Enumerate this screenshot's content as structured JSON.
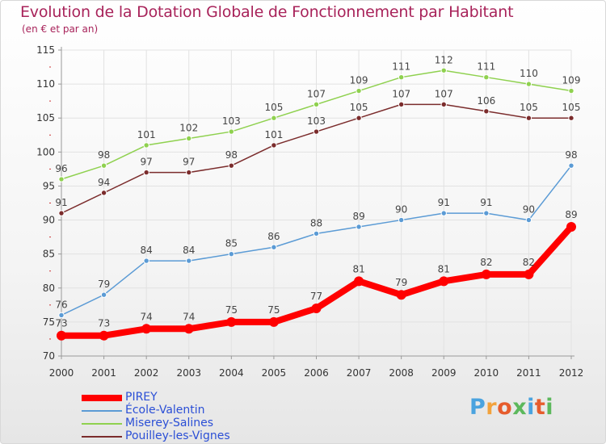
{
  "title": "Evolution de la Dotation Globale de Fonctionnement par Habitant",
  "subtitle": "(en € et par an)",
  "logo": {
    "letters": [
      "P",
      "r",
      "o",
      "x",
      "i",
      "t",
      "i"
    ],
    "colors": [
      "#4aa3df",
      "#f2a23c",
      "#e65c2d",
      "#5cb85c",
      "#4aa3df",
      "#e65c2d",
      "#5cb85c"
    ]
  },
  "chart_data": {
    "type": "line",
    "title": "Evolution de la Dotation Globale de Fonctionnement par Habitant",
    "subtitle": "(en € et par an)",
    "xlabel": "",
    "ylabel": "",
    "x": [
      "2000",
      "2001",
      "2002",
      "2003",
      "2004",
      "2005",
      "2006",
      "2007",
      "2008",
      "2009",
      "2010",
      "2011",
      "2012"
    ],
    "ylim": [
      70,
      115
    ],
    "yticks": [
      "70",
      "75",
      "80",
      "85",
      "90",
      "95",
      "100",
      "105",
      "110",
      "115"
    ],
    "grid": true,
    "legend_position": "bottom-left",
    "series": [
      {
        "name": "PIREY",
        "color": "#ff0000",
        "values": [
          73,
          73,
          74,
          74,
          75,
          75,
          77,
          81,
          79,
          81,
          82,
          82,
          89
        ],
        "labels": [
          "73",
          "73",
          "74",
          "74",
          "75",
          "75",
          "77",
          "81",
          "79",
          "81",
          "82",
          "82",
          "89"
        ]
      },
      {
        "name": "École-Valentin",
        "color": "#5b9bd5",
        "values": [
          76,
          79,
          84,
          84,
          85,
          86,
          88,
          89,
          90,
          91,
          91,
          90,
          98
        ],
        "labels": [
          "76",
          "79",
          "84",
          "84",
          "85",
          "86",
          "88",
          "89",
          "90",
          "91",
          "91",
          "90",
          "98"
        ]
      },
      {
        "name": "Miserey-Salines",
        "color": "#8fd14f",
        "values": [
          96,
          98,
          101,
          102,
          103,
          105,
          107,
          109,
          111,
          112,
          111,
          110,
          109
        ],
        "labels": [
          "96",
          "98",
          "101",
          "102",
          "103",
          "105",
          "107",
          "109",
          "111",
          "112",
          "111",
          "110",
          "109"
        ]
      },
      {
        "name": "Pouilley-les-Vignes",
        "color": "#7b2c2c",
        "values": [
          91,
          94,
          97,
          97,
          98,
          101,
          103,
          105,
          107,
          107,
          106,
          105,
          105
        ],
        "labels": [
          "91",
          "94",
          "97",
          "97",
          "98",
          "101",
          "103",
          "105",
          "107",
          "107",
          "106",
          "105",
          "105"
        ]
      }
    ]
  }
}
